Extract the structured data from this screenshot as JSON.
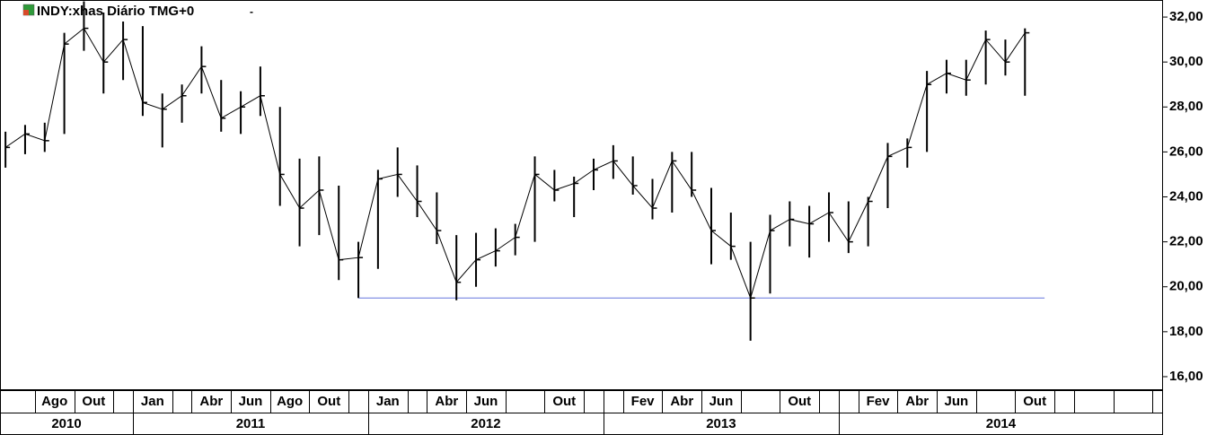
{
  "chart_data": {
    "type": "ohlc",
    "title": "INDY:xhas Diário TMG+0",
    "menu_marker": "-",
    "color": "#000000",
    "categories": [
      "2010-06",
      "2010-07",
      "2010-08",
      "2010-09",
      "2010-10",
      "2010-11",
      "2010-12",
      "2011-01",
      "2011-02",
      "2011-03",
      "2011-04",
      "2011-05",
      "2011-06",
      "2011-07",
      "2011-08",
      "2011-09",
      "2011-10",
      "2011-11",
      "2011-12",
      "2012-01",
      "2012-02",
      "2012-03",
      "2012-04",
      "2012-05",
      "2012-06",
      "2012-07",
      "2012-08",
      "2012-09",
      "2012-10",
      "2012-11",
      "2012-12",
      "2013-01",
      "2013-02",
      "2013-03",
      "2013-04",
      "2013-05",
      "2013-06",
      "2013-07",
      "2013-08",
      "2013-09",
      "2013-10",
      "2013-11",
      "2013-12",
      "2014-01",
      "2014-02",
      "2014-03",
      "2014-04",
      "2014-05",
      "2014-06",
      "2014-07",
      "2014-08",
      "2014-09",
      "2014-10",
      "2014-11",
      "2014-12",
      "2015-01",
      "2015-02",
      "2015-03",
      "2015-04",
      "2015-05"
    ],
    "month_labels": [
      null,
      null,
      "Ago",
      null,
      "Out",
      null,
      null,
      "Jan",
      null,
      null,
      "Abr",
      null,
      "Jun",
      null,
      "Ago",
      null,
      "Out",
      null,
      null,
      "Jan",
      null,
      null,
      "Abr",
      null,
      "Jun",
      null,
      null,
      null,
      "Out",
      null,
      null,
      null,
      "Fev",
      null,
      "Abr",
      null,
      "Jun",
      null,
      null,
      null,
      "Out",
      null,
      null,
      null,
      "Fev",
      null,
      "Abr",
      null,
      "Jun",
      null,
      null,
      null,
      "Out",
      null,
      null,
      null,
      null,
      null,
      null,
      null
    ],
    "year_labels": [
      "2010",
      "2011",
      "2012",
      "2013",
      "2014"
    ],
    "high": [
      26.9,
      27.2,
      27.3,
      31.3,
      32.7,
      32.2,
      31.8,
      31.6,
      28.6,
      29.0,
      30.7,
      29.2,
      28.7,
      29.8,
      28.0,
      25.7,
      25.8,
      24.5,
      22.0,
      25.2,
      26.2,
      25.4,
      24.2,
      22.3,
      22.4,
      22.6,
      22.8,
      25.8,
      25.2,
      24.9,
      25.7,
      26.3,
      25.8,
      24.8,
      26.0,
      26.0,
      24.4,
      23.3,
      22.0,
      23.2,
      23.8,
      23.6,
      24.2,
      23.8,
      24.0,
      26.4,
      26.6,
      29.6,
      30.1,
      30.1,
      31.4,
      31.0,
      31.5,
      null,
      null,
      null,
      null,
      null,
      null,
      null
    ],
    "low": [
      25.3,
      25.9,
      26.0,
      26.8,
      30.5,
      28.6,
      29.2,
      27.6,
      26.2,
      27.3,
      28.6,
      26.9,
      26.8,
      27.6,
      23.6,
      21.8,
      22.3,
      20.3,
      19.5,
      20.8,
      24.0,
      23.1,
      21.9,
      19.4,
      20.0,
      20.9,
      21.4,
      22.0,
      23.8,
      23.1,
      24.3,
      24.8,
      24.1,
      23.0,
      23.3,
      24.0,
      21.0,
      21.2,
      17.6,
      19.7,
      21.8,
      21.3,
      22.0,
      21.5,
      21.8,
      23.5,
      25.3,
      26.0,
      28.6,
      28.5,
      29.0,
      29.4,
      28.5,
      null,
      null,
      null,
      null,
      null,
      null,
      null
    ],
    "close": [
      26.2,
      26.8,
      26.5,
      30.8,
      31.5,
      30.0,
      31.0,
      28.2,
      27.9,
      28.5,
      29.8,
      27.5,
      28.0,
      28.5,
      25.0,
      23.5,
      24.3,
      21.2,
      21.3,
      24.8,
      25.0,
      23.8,
      22.5,
      20.2,
      21.2,
      21.6,
      22.2,
      25.0,
      24.3,
      24.6,
      25.2,
      25.6,
      24.5,
      23.5,
      25.6,
      24.3,
      22.5,
      21.8,
      19.5,
      22.5,
      23.0,
      22.8,
      23.3,
      22.0,
      23.8,
      25.8,
      26.2,
      29.0,
      29.5,
      29.2,
      31.0,
      30.0,
      31.3,
      null,
      null,
      null,
      null,
      null,
      null,
      null
    ],
    "ylim": [
      15.4,
      32.76
    ],
    "yticks": [
      {
        "value": 16,
        "label": "16,00"
      },
      {
        "value": 18,
        "label": "18,00"
      },
      {
        "value": 20,
        "label": "20,00"
      },
      {
        "value": 22,
        "label": "22,00"
      },
      {
        "value": 24,
        "label": "24,00"
      },
      {
        "value": 26,
        "label": "26,00"
      },
      {
        "value": 28,
        "label": "28,00"
      },
      {
        "value": 30,
        "label": "30,00"
      },
      {
        "value": 32,
        "label": "32,00"
      }
    ],
    "support_line": {
      "value": 19.5,
      "from": "2011-12",
      "to": "2014-11",
      "color": "#6677dd"
    }
  }
}
